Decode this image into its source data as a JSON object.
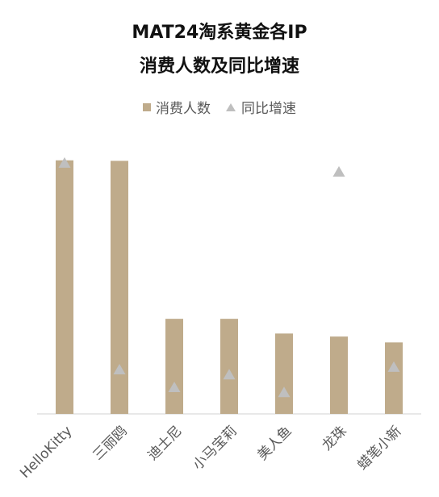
{
  "chart_data": {
    "type": "bar",
    "title_lines": [
      "MAT24淘系黄金各IP",
      "消费人数及同比增速"
    ],
    "categories": [
      "HelloKitty",
      "三丽鸥",
      "迪士尼",
      "小马宝莉",
      "美人鱼",
      "龙珠",
      "蜡笔小新"
    ],
    "series": [
      {
        "name": "消费人数",
        "kind": "bar",
        "color": "#bfab8b",
        "values": [
          100,
          99.8,
          37.5,
          37.5,
          31.7,
          30.5,
          28.2
        ]
      },
      {
        "name": "同比增速",
        "kind": "marker-triangle",
        "color": "#bfbfbf",
        "values": [
          99,
          17.5,
          10.5,
          15.5,
          8.5,
          95.5,
          18.5
        ]
      }
    ],
    "ylim": [
      0,
      105
    ],
    "grid": false,
    "legend_position": "top-center"
  }
}
